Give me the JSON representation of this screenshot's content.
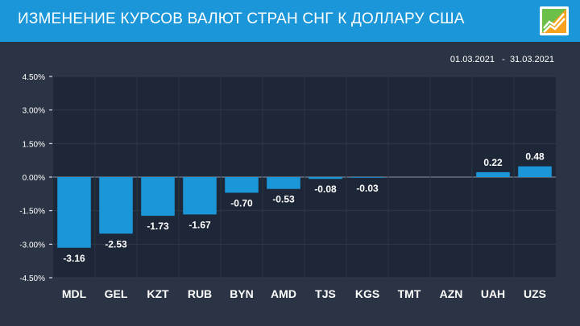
{
  "header": {
    "title": "ИЗМЕНЕНИЕ КУРСОВ ВАЛЮТ СТРАН СНГ К ДОЛЛАРУ США",
    "logo_icon": "growth-chart-logo-icon"
  },
  "date_range": {
    "start": "01.03.2021",
    "end": "31.03.2021"
  },
  "colors": {
    "header_bg": "#1b96d8",
    "page_bg": "#2b3444",
    "plot_bg": "#1e2738",
    "bar": "#1b96d8",
    "text": "#ffffff"
  },
  "chart_data": {
    "type": "bar",
    "categories": [
      "MDL",
      "GEL",
      "KZT",
      "RUB",
      "BYN",
      "AMD",
      "TJS",
      "KGS",
      "TMT",
      "AZN",
      "UAH",
      "UZS"
    ],
    "values": [
      -3.16,
      -2.53,
      -1.73,
      -1.67,
      -0.7,
      -0.53,
      -0.08,
      -0.03,
      0,
      0,
      0.22,
      0.48
    ],
    "data_labels": [
      "-3.16",
      "-2.53",
      "-1.73",
      "-1.67",
      "-0.70",
      "-0.53",
      "-0.08",
      "-0.03",
      "",
      "",
      "0.22",
      "0.48"
    ],
    "y_ticks": [
      4.5,
      3.0,
      1.5,
      0.0,
      -1.5,
      -3.0,
      -4.5
    ],
    "y_tick_labels": [
      "4.50%",
      "3.00%",
      "1.50%",
      "0.00%",
      "-1.50%",
      "-3.00%",
      "-4.50%"
    ],
    "ylim": [
      -4.5,
      4.5
    ],
    "xlabel": "",
    "ylabel": "",
    "grid": true,
    "legend": "none"
  }
}
